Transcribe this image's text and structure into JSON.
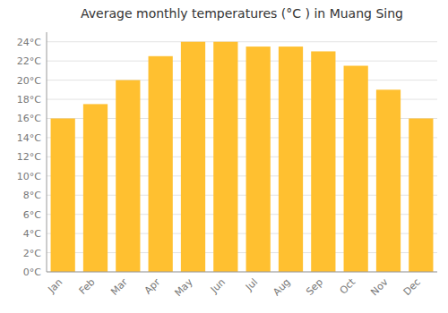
{
  "chart_data": {
    "type": "bar",
    "title": "Average monthly temperatures (°C ) in Muang Sing",
    "categories": [
      "Jan",
      "Feb",
      "Mar",
      "Apr",
      "May",
      "Jun",
      "Jul",
      "Aug",
      "Sep",
      "Oct",
      "Nov",
      "Dec"
    ],
    "values": [
      16,
      17.5,
      20,
      22.5,
      24,
      24,
      23.5,
      23.5,
      23,
      21.5,
      19,
      16
    ],
    "color": "#FFC030",
    "ylim": [
      0,
      25
    ],
    "yticks": [
      {
        "value": 0,
        "label": "0°C"
      },
      {
        "value": 2,
        "label": "2°C"
      },
      {
        "value": 4,
        "label": "4°C"
      },
      {
        "value": 6,
        "label": "6°C"
      },
      {
        "value": 8,
        "label": "8°C"
      },
      {
        "value": 10,
        "label": "10°C"
      },
      {
        "value": 12,
        "label": "12°C"
      },
      {
        "value": 14,
        "label": "14°C"
      },
      {
        "value": 16,
        "label": "16°C"
      },
      {
        "value": 18,
        "label": "18°C"
      },
      {
        "value": 20,
        "label": "20°C"
      },
      {
        "value": 22,
        "label": "22°C"
      },
      {
        "value": 24,
        "label": "24°C"
      }
    ],
    "grid": true
  }
}
